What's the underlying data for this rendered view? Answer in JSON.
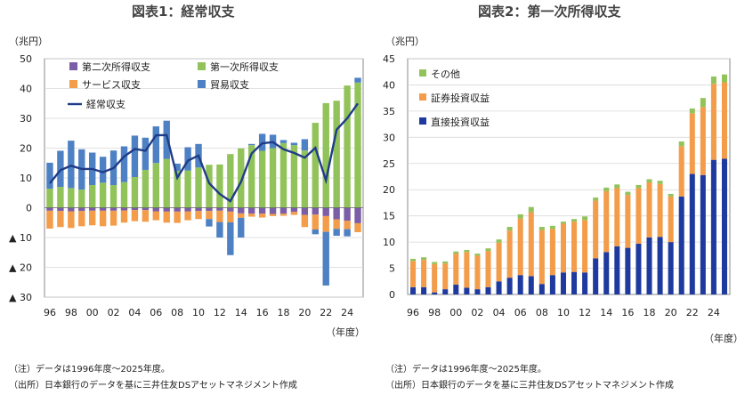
{
  "charts": [
    {
      "title": "図表1：経常収支",
      "unit": "（兆円）",
      "xunit": "（年度）",
      "note": "（注）データは1996年度～2025年度。",
      "source": "（出所）日本銀行のデータを基に三井住友DSアセットマネジメント作成"
    },
    {
      "title": "図表2：第一次所得収支",
      "unit": "（兆円）",
      "xunit": "（年度）",
      "note": "（注）データは1996年度～2025年度。",
      "source": "（出所）日本銀行のデータを基に三井住友DSアセットマネジメント作成"
    }
  ],
  "chart_data": [
    {
      "type": "bar",
      "stacked": true,
      "x": [
        1996,
        1997,
        1998,
        1999,
        2000,
        2001,
        2002,
        2003,
        2004,
        2005,
        2006,
        2007,
        2008,
        2009,
        2010,
        2011,
        2012,
        2013,
        2014,
        2015,
        2016,
        2017,
        2018,
        2019,
        2020,
        2021,
        2022,
        2023,
        2024,
        2025
      ],
      "ylim": [
        -30,
        50
      ],
      "yticks": [
        50,
        40,
        30,
        20,
        10,
        0,
        -10,
        -20,
        -30
      ],
      "ytick_labels": [
        "50",
        "40",
        "30",
        "20",
        "10",
        "0",
        "▲ 10",
        "▲ 20",
        "▲ 30"
      ],
      "xtick_labels": [
        "96",
        "98",
        "00",
        "02",
        "04",
        "06",
        "08",
        "10",
        "12",
        "14",
        "16",
        "18",
        "20",
        "22",
        "24"
      ],
      "xtick_years": [
        1996,
        1998,
        2000,
        2002,
        2004,
        2006,
        2008,
        2010,
        2012,
        2014,
        2016,
        2018,
        2020,
        2022,
        2024
      ],
      "legend": "top-left",
      "series": [
        {
          "name": "第二次所得収支",
          "color": "#7b5ea7",
          "values": [
            -1.0,
            -1.1,
            -1.2,
            -1.1,
            -1.0,
            -1.0,
            -1.0,
            -0.9,
            -0.8,
            -0.8,
            -1.2,
            -1.3,
            -1.3,
            -1.2,
            -1.1,
            -1.1,
            -1.0,
            -1.3,
            -1.9,
            -2.0,
            -2.0,
            -2.1,
            -2.0,
            -1.4,
            -2.4,
            -2.3,
            -2.8,
            -3.9,
            -4.4,
            -5.2
          ]
        },
        {
          "name": "第一次所得収支",
          "color": "#92c35a",
          "values": [
            6.4,
            7.0,
            6.6,
            6.1,
            7.6,
            8.4,
            7.6,
            8.6,
            10.3,
            12.7,
            15.0,
            16.4,
            12.4,
            12.5,
            13.5,
            14.4,
            14.5,
            18.0,
            19.9,
            21.0,
            19.1,
            20.0,
            21.7,
            21.0,
            19.2,
            28.5,
            35.1,
            35.9,
            41.0,
            42.0
          ]
        },
        {
          "name": "サービス収支",
          "color": "#f39c4a",
          "values": [
            -6.0,
            -5.4,
            -5.6,
            -5.1,
            -4.9,
            -5.2,
            -5.0,
            -4.1,
            -3.7,
            -3.9,
            -3.0,
            -3.7,
            -3.8,
            -3.0,
            -2.7,
            -2.7,
            -3.8,
            -3.6,
            -1.5,
            -1.0,
            -1.3,
            -0.7,
            -0.7,
            -1.0,
            -4.1,
            -5.0,
            -5.3,
            -3.2,
            -2.8,
            -3.0
          ]
        },
        {
          "name": "貿易収支",
          "color": "#4e81c4",
          "values": [
            8.7,
            12.1,
            15.9,
            13.5,
            10.9,
            8.7,
            11.6,
            12.0,
            13.9,
            10.8,
            12.3,
            12.8,
            2.4,
            7.8,
            7.9,
            -2.5,
            -5.2,
            -11.0,
            -6.6,
            0.4,
            5.7,
            4.5,
            1.0,
            0.8,
            3.8,
            -1.6,
            -18.0,
            -2.3,
            -2.4,
            1.6
          ]
        }
      ],
      "line": {
        "name": "経常収支",
        "color": "#1f3c88",
        "values": [
          8.2,
          12.6,
          14.1,
          13.0,
          13.0,
          11.9,
          13.3,
          17.2,
          19.7,
          19.1,
          24.3,
          24.4,
          10.1,
          15.8,
          17.5,
          8.2,
          4.6,
          2.2,
          8.7,
          18.2,
          21.6,
          22.0,
          19.6,
          18.4,
          16.8,
          20.1,
          9.2,
          26.2,
          30.0,
          35.0
        ]
      }
    },
    {
      "type": "bar",
      "stacked": true,
      "x": [
        1996,
        1997,
        1998,
        1999,
        2000,
        2001,
        2002,
        2003,
        2004,
        2005,
        2006,
        2007,
        2008,
        2009,
        2010,
        2011,
        2012,
        2013,
        2014,
        2015,
        2016,
        2017,
        2018,
        2019,
        2020,
        2021,
        2022,
        2023,
        2024,
        2025
      ],
      "ylim": [
        0,
        45
      ],
      "yticks": [
        0,
        5,
        10,
        15,
        20,
        25,
        30,
        35,
        40,
        45
      ],
      "xtick_labels": [
        "96",
        "98",
        "00",
        "02",
        "04",
        "06",
        "08",
        "10",
        "12",
        "14",
        "16",
        "18",
        "20",
        "22",
        "24"
      ],
      "xtick_years": [
        1996,
        1998,
        2000,
        2002,
        2004,
        2006,
        2008,
        2010,
        2012,
        2014,
        2016,
        2018,
        2020,
        2022,
        2024
      ],
      "legend": "top-left",
      "series": [
        {
          "name": "直接投資収益",
          "color": "#1e3a9e",
          "values": [
            1.4,
            1.4,
            0.4,
            1.0,
            1.9,
            1.3,
            1.0,
            1.4,
            2.5,
            3.2,
            3.7,
            3.5,
            2.0,
            3.7,
            4.2,
            4.3,
            4.2,
            6.9,
            8.1,
            9.2,
            8.9,
            9.7,
            10.9,
            11.0,
            10.0,
            18.7,
            23.0,
            22.8,
            25.7,
            25.9
          ]
        },
        {
          "name": "証券投資収益",
          "color": "#f39c4a",
          "values": [
            5.0,
            5.2,
            5.4,
            4.9,
            5.9,
            6.8,
            6.4,
            6.9,
            7.4,
            9.0,
            10.8,
            12.2,
            10.3,
            8.8,
            9.3,
            9.6,
            10.0,
            11.0,
            11.6,
            11.1,
            10.1,
            10.6,
            10.5,
            10.1,
            8.7,
            9.6,
            11.6,
            13.0,
            14.5,
            14.6
          ]
        },
        {
          "name": "その他",
          "color": "#92c35a",
          "values": [
            0.4,
            0.5,
            0.4,
            0.4,
            0.4,
            0.4,
            0.4,
            0.5,
            0.6,
            0.7,
            0.8,
            1.0,
            0.6,
            0.6,
            0.4,
            0.5,
            0.7,
            0.6,
            0.7,
            0.7,
            0.6,
            0.6,
            0.6,
            0.6,
            0.5,
            0.9,
            0.9,
            1.7,
            1.4,
            1.5
          ]
        }
      ],
      "legend_order": [
        "その他",
        "証券投資収益",
        "直接投資収益"
      ]
    }
  ]
}
